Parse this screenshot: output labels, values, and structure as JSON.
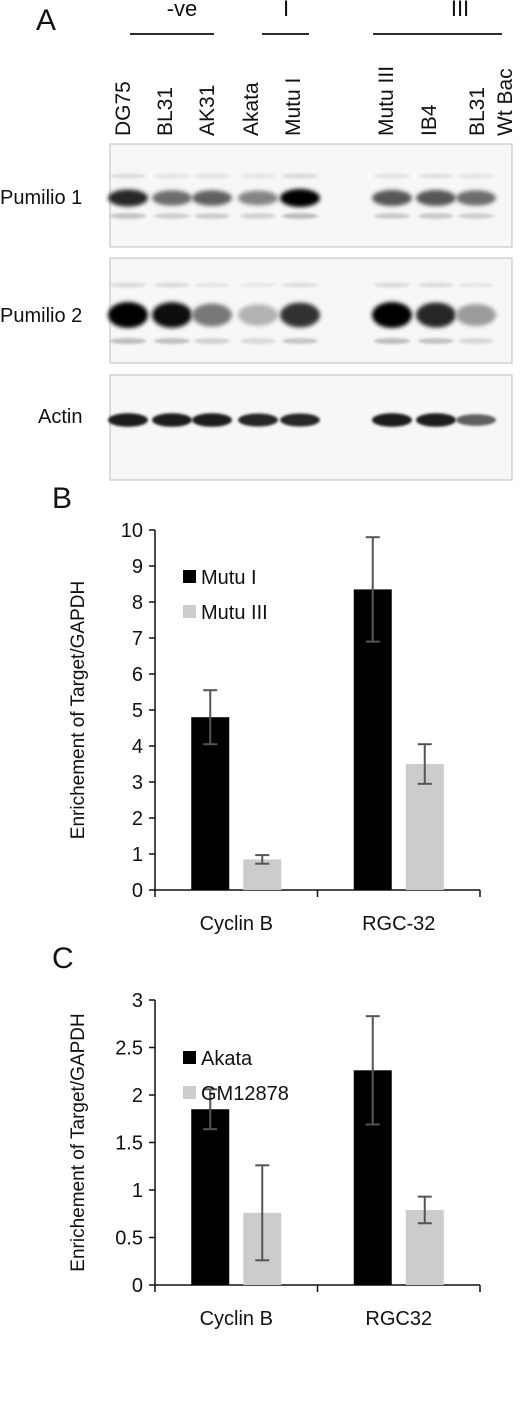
{
  "panel_a": {
    "label": "A",
    "groups": [
      "-ve",
      "I",
      "III"
    ],
    "lanes": [
      "DG75",
      "BL31",
      "AK31",
      "Akata",
      "Mutu I",
      "Mutu III",
      "IB4",
      "BL31",
      "Wt Bac"
    ],
    "blots": [
      {
        "label": "Pumilio 1",
        "intensity": [
          0.85,
          0.55,
          0.6,
          0.45,
          1.0,
          null,
          0.65,
          0.65,
          0.55
        ]
      },
      {
        "label": "Pumilio 2",
        "intensity": [
          1.0,
          0.95,
          0.5,
          0.25,
          0.8,
          null,
          1.0,
          0.85,
          0.35
        ]
      },
      {
        "label": "Actin",
        "intensity": [
          0.9,
          0.9,
          0.9,
          0.85,
          0.85,
          null,
          0.9,
          0.9,
          0.6
        ]
      }
    ]
  },
  "chart_data": [
    {
      "panel": "B",
      "type": "bar",
      "categories": [
        "Cyclin B",
        "RGC-32"
      ],
      "series": [
        {
          "name": "Mutu I",
          "values": [
            4.8,
            8.35
          ],
          "errors": [
            0.75,
            1.45
          ],
          "color": "#000000"
        },
        {
          "name": "Mutu III",
          "values": [
            0.85,
            3.5
          ],
          "errors": [
            0.12,
            0.55
          ],
          "color": "#cccccc"
        }
      ],
      "ylabel": "Enrichement of Target/GAPDH",
      "ylim": [
        0,
        10
      ],
      "yticks": [
        0,
        1,
        2,
        3,
        4,
        5,
        6,
        7,
        8,
        9,
        10
      ],
      "ytick_labels": [
        "0",
        "1",
        "2",
        "3",
        "4",
        "5",
        "6",
        "7",
        "8",
        "9",
        "10"
      ],
      "grid": false,
      "legend": "top-left"
    },
    {
      "panel": "C",
      "type": "bar",
      "categories": [
        "Cyclin B",
        "RGC32"
      ],
      "series": [
        {
          "name": "Akata",
          "values": [
            1.85,
            2.26
          ],
          "errors": [
            0.21,
            0.57
          ],
          "color": "#000000"
        },
        {
          "name": "GM12878",
          "values": [
            0.76,
            0.79
          ],
          "errors": [
            0.5,
            0.14
          ],
          "color": "#cccccc"
        }
      ],
      "ylabel": "Enrichement of Target/GAPDH",
      "ylim": [
        0,
        3
      ],
      "yticks": [
        0,
        0.5,
        1,
        1.5,
        2,
        2.5,
        3
      ],
      "ytick_labels": [
        "0",
        "0.5",
        "1",
        "1.5",
        "2",
        "2.5",
        "3"
      ],
      "grid": false,
      "legend": "top-left"
    }
  ]
}
